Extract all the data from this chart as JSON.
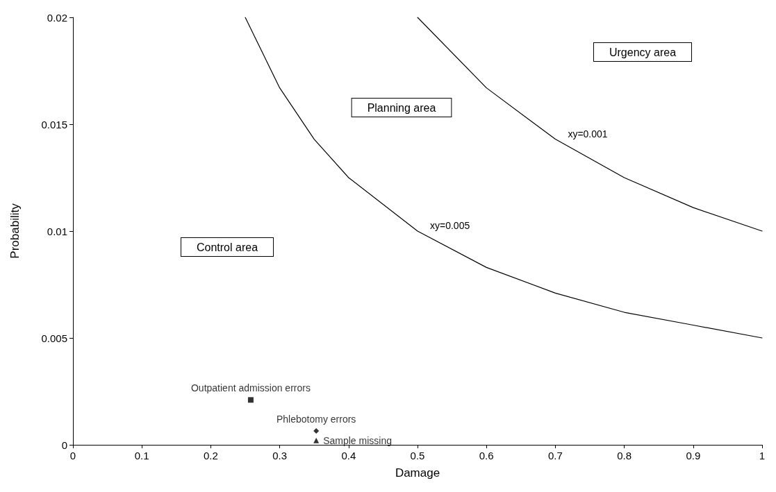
{
  "chart_data": {
    "type": "line",
    "xlabel": "Damage",
    "ylabel": "Probability",
    "xlim": [
      0,
      1
    ],
    "xticks": [
      0,
      0.1,
      0.2,
      0.3,
      0.4,
      0.5,
      0.6,
      0.7,
      0.8,
      0.9,
      1
    ],
    "ylim": [
      0,
      0.02
    ],
    "yticks": [
      0,
      0.005,
      0.01,
      0.015,
      0.02
    ],
    "grid": false,
    "legend": false,
    "series": [
      {
        "name": "xy=0.005",
        "color": "#000000",
        "marker": "none",
        "x": [
          0.25,
          0.3,
          0.35,
          0.4,
          0.5,
          0.6,
          0.7,
          0.8,
          0.9,
          1
        ],
        "values": [
          0.02,
          0.0167,
          0.0143,
          0.0125,
          0.01,
          0.0083,
          0.0071,
          0.0062,
          0.0056,
          0.005
        ]
      },
      {
        "name": "xy=0.001",
        "color": "#000000",
        "marker": "none",
        "x": [
          0.5,
          0.6,
          0.7,
          0.8,
          0.9,
          1
        ],
        "values": [
          0.02,
          0.0167,
          0.0143,
          0.0125,
          0.0111,
          0.01
        ]
      },
      {
        "type": "scatter",
        "name": "Outpatient admission errors",
        "color": "#000000",
        "marker": "square",
        "x": [
          0.258
        ],
        "values": [
          0.0021
        ]
      },
      {
        "type": "scatter",
        "name": "Phlebotomy errors",
        "color": "#000000",
        "marker": "diamond",
        "x": [
          0.353
        ],
        "values": [
          0.00065
        ]
      },
      {
        "type": "scatter",
        "name": "Sample missing",
        "color": "#000000",
        "marker": "triangle",
        "x": [
          0.353
        ],
        "values": [
          0.0002
        ]
      }
    ],
    "annotations": [
      "Urgency area",
      "Planning area",
      "Control area"
    ]
  }
}
